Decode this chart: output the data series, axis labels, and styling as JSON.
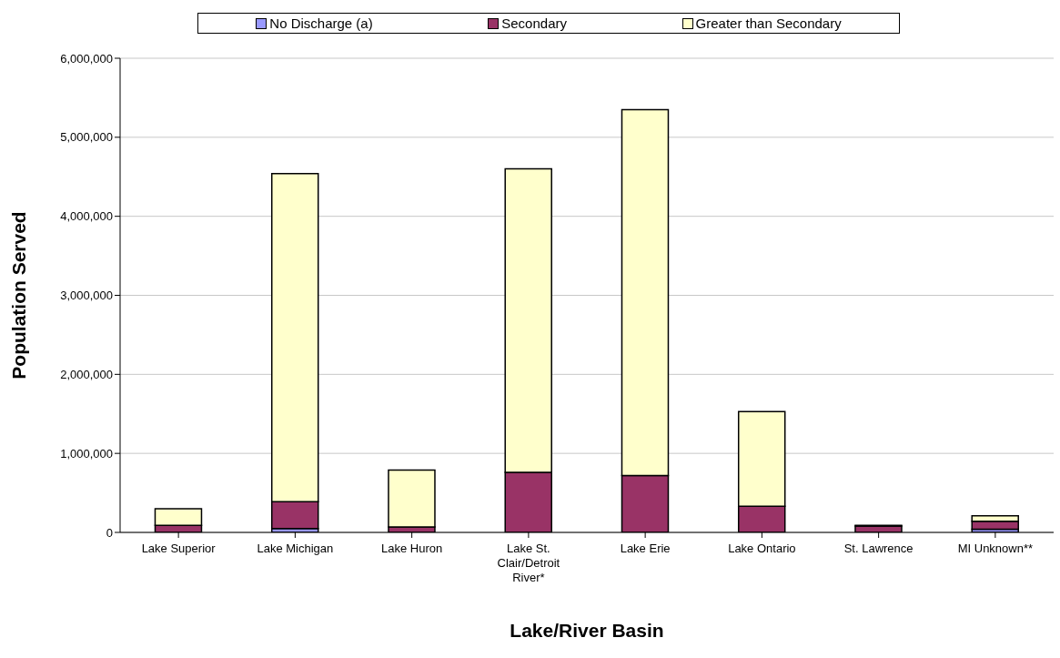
{
  "chart_data": {
    "type": "bar",
    "stacked": true,
    "xlabel": "Lake/River Basin",
    "ylabel": "Population Served",
    "categories": [
      "Lake Superior",
      "Lake Michigan",
      "Lake Huron",
      "Lake St. Clair/Detroit River*",
      "Lake Erie",
      "Lake Ontario",
      "St. Lawrence",
      "MI Unknown**"
    ],
    "series": [
      {
        "name": "No Discharge (a)",
        "color": "#9999ff",
        "values": [
          0,
          50000,
          0,
          0,
          0,
          0,
          0,
          40000
        ]
      },
      {
        "name": "Secondary",
        "color": "#993366",
        "values": [
          90000,
          340000,
          70000,
          760000,
          720000,
          330000,
          80000,
          100000
        ]
      },
      {
        "name": "Greater than Secondary",
        "color": "#ffffcc",
        "values": [
          210000,
          4150000,
          720000,
          3840000,
          4630000,
          1200000,
          10000,
          70000
        ]
      }
    ],
    "ylim": [
      0,
      6000000
    ],
    "yticks": [
      0,
      {
        "value": 1000000,
        "label": "1,000,000"
      },
      {
        "value": 2000000,
        "label": "2,000,000"
      },
      {
        "value": 3000000,
        "label": "3,000,000"
      },
      {
        "value": 4000000,
        "label": "4,000,000"
      },
      {
        "value": 5000000,
        "label": "5,000,000"
      },
      {
        "value": 6000000,
        "label": "6,000,000"
      }
    ],
    "grid": "y",
    "legend": "top"
  }
}
